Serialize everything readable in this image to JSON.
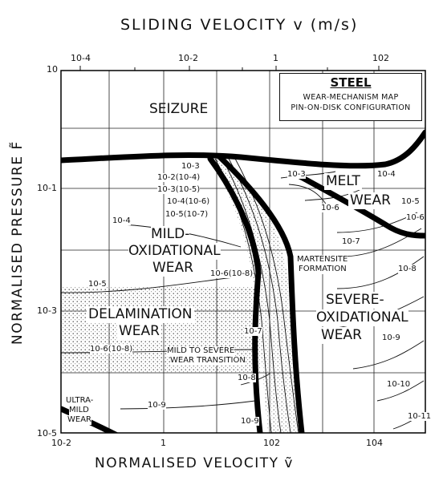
{
  "titles": {
    "top_axis": "SLIDING VELOCITY  v (m/s)",
    "bottom_axis": "NORMALISED VELOCITY  ṽ",
    "left_axis": "NORMALISED PRESSURE  F̃"
  },
  "legend": {
    "title": "STEEL",
    "line1": "WEAR-MECHANISM MAP",
    "line2": "PIN-ON-DISK CONFIGURATION"
  },
  "top_ticks": [
    "10-4",
    "10-2",
    "1",
    "102"
  ],
  "bottom_ticks": [
    "10-2",
    "1",
    "102",
    "104"
  ],
  "left_ticks": [
    "10",
    "10-1",
    "10-3",
    "10-5"
  ],
  "regions": {
    "seizure": "SEIZURE",
    "melt_wear": [
      "MELT",
      "WEAR"
    ],
    "mild_oxidational": [
      "MILD-",
      "OXIDATIONAL",
      "WEAR"
    ],
    "severe_oxidational": [
      "SEVERE-",
      "OXIDATIONAL",
      "WEAR"
    ],
    "delamination": [
      "DELAMINATION",
      "WEAR"
    ],
    "ultra_mild": [
      "ULTRA-",
      "MILD",
      "WEAR"
    ],
    "martensite": [
      "MARTENSITE",
      "FORMATION"
    ],
    "mild_to_severe": [
      "MILD TO SEVERE",
      "WEAR TRANSITION"
    ]
  },
  "contours": [
    "10-3",
    "10-2(10-4)",
    "10-3(10-5)",
    "10-4(10-6)",
    "10-5(10-7)",
    "10-4",
    "10-6(10-8)",
    "10-5",
    "10-6(10-8)",
    "10-7",
    "10-8",
    "10-9",
    "10-9",
    "10-3",
    "10-4",
    "10-5",
    "10-6",
    "10-6",
    "10-7",
    "10-8",
    "10-9",
    "10-10",
    "10-11"
  ]
}
